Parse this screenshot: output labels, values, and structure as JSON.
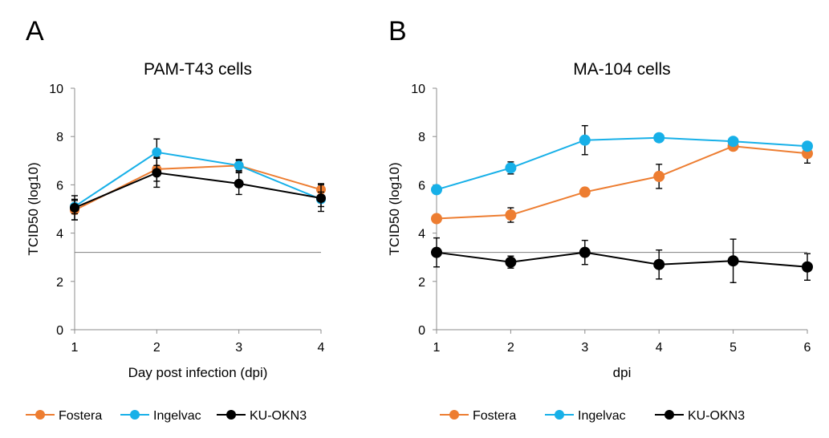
{
  "chart_data": [
    {
      "type": "line",
      "panel_label": "A",
      "title": "PAM-T43 cells",
      "xlabel": "Day post infection (dpi)",
      "ylabel": "TCID50 (log10)",
      "x": [
        1,
        2,
        3,
        4
      ],
      "xlim": [
        1,
        4
      ],
      "ylim": [
        0,
        10
      ],
      "yticks": [
        0,
        2,
        4,
        6,
        8,
        10
      ],
      "reference_line": 3.2,
      "grid": false,
      "legend_position": "bottom",
      "series": [
        {
          "name": "Fostera",
          "color": "#ED7D31",
          "values": [
            4.95,
            6.65,
            6.8,
            5.8
          ],
          "errors": [
            0.4,
            0.5,
            0.25,
            0.25
          ]
        },
        {
          "name": "Ingelvac",
          "color": "#17B0E8",
          "values": [
            5.1,
            7.35,
            6.8,
            5.4
          ],
          "errors": [
            0.3,
            0.55,
            0.2,
            0.3
          ]
        },
        {
          "name": "KU-OKN3",
          "color": "#000000",
          "values": [
            5.05,
            6.5,
            6.05,
            5.45
          ],
          "errors": [
            0.5,
            0.6,
            0.45,
            0.55
          ]
        }
      ]
    },
    {
      "type": "line",
      "panel_label": "B",
      "title": "MA-104 cells",
      "xlabel": "dpi",
      "ylabel": "TCID50 (log10)",
      "x": [
        1,
        2,
        3,
        4,
        5,
        6
      ],
      "xlim": [
        1,
        6
      ],
      "ylim": [
        0,
        10
      ],
      "yticks": [
        0,
        2,
        4,
        6,
        8,
        10
      ],
      "reference_line": 3.2,
      "grid": false,
      "legend_position": "bottom",
      "series": [
        {
          "name": "Fostera",
          "color": "#ED7D31",
          "values": [
            4.6,
            4.75,
            5.7,
            6.35,
            7.6,
            7.3
          ],
          "errors": [
            0.0,
            0.3,
            0.0,
            0.5,
            0.0,
            0.4
          ]
        },
        {
          "name": "Ingelvac",
          "color": "#17B0E8",
          "values": [
            5.8,
            6.7,
            7.85,
            7.95,
            7.8,
            7.6
          ],
          "errors": [
            0.0,
            0.25,
            0.6,
            0.0,
            0.0,
            0.0
          ]
        },
        {
          "name": "KU-OKN3",
          "color": "#000000",
          "values": [
            3.2,
            2.8,
            3.2,
            2.7,
            2.85,
            2.6
          ],
          "errors": [
            0.6,
            0.25,
            0.5,
            0.6,
            0.9,
            0.55
          ]
        }
      ]
    }
  ]
}
